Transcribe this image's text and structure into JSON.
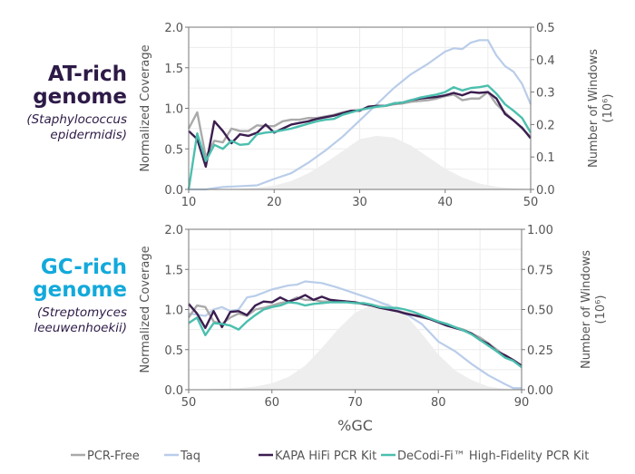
{
  "colors": {
    "at_title": "#2d1a47",
    "gc_title": "#13a9db",
    "pcr_free": "#aaaaaa",
    "taq": "#b9cde9",
    "kapa": "#3b1d4f",
    "decodi": "#4bbfae",
    "windows_fill": "#eeeeee"
  },
  "panels": [
    {
      "title_line1": "AT-rich",
      "title_line2": "genome",
      "organism_line1": "(Staphylococcus",
      "organism_line2": "epidermidis)"
    },
    {
      "title_line1": "GC-rich",
      "title_line2": "genome",
      "organism_line1": "(Streptomyces",
      "organism_line2": "leeuwenhoekii)"
    }
  ],
  "legend": [
    "PCR-Free",
    "Taq",
    "KAPA HiFi PCR Kit",
    "DeCodi-Fi™ High-Fidelity PCR Kit"
  ],
  "chart_data": [
    {
      "type": "line",
      "xlabel": "%GC",
      "ylabel": "Normalized Coverage",
      "y2label_line1": "Number of Windows",
      "y2label_line2": "(10⁶)",
      "xlim": [
        10,
        50
      ],
      "ylim": [
        0,
        2
      ],
      "y2lim": [
        0,
        0.5
      ],
      "grid": true,
      "xticks": [
        "10",
        "20",
        "30",
        "40",
        "50"
      ],
      "yticks": [
        "0.0",
        "0.5",
        "1.0",
        "1.5",
        "2.0"
      ],
      "y2ticks": [
        "0.0",
        "0.1",
        "0.2",
        "0.3",
        "0.4",
        "0.5"
      ],
      "x": [
        10,
        11,
        12,
        13,
        14,
        15,
        16,
        17,
        18,
        19,
        20,
        21,
        22,
        23,
        24,
        25,
        26,
        27,
        28,
        29,
        30,
        31,
        32,
        33,
        34,
        35,
        36,
        37,
        38,
        39,
        40,
        41,
        42,
        43,
        44,
        45,
        46,
        47,
        48,
        49,
        50
      ],
      "series": [
        {
          "name": "PCR-Free",
          "values": [
            0.75,
            0.95,
            0.4,
            0.6,
            0.58,
            0.75,
            0.72,
            0.72,
            0.79,
            0.78,
            0.78,
            0.84,
            0.86,
            0.86,
            0.88,
            0.88,
            0.9,
            0.92,
            0.95,
            0.97,
            0.98,
            1.0,
            1.02,
            1.03,
            1.05,
            1.06,
            1.08,
            1.09,
            1.1,
            1.12,
            1.15,
            1.17,
            1.1,
            1.12,
            1.12,
            1.2,
            1.05,
            0.95,
            0.85,
            0.75,
            0.65
          ]
        },
        {
          "name": "KAPA HiFi PCR Kit",
          "values": [
            0.72,
            0.62,
            0.28,
            0.84,
            0.72,
            0.57,
            0.68,
            0.66,
            0.7,
            0.8,
            0.7,
            0.75,
            0.8,
            0.82,
            0.84,
            0.87,
            0.89,
            0.91,
            0.94,
            0.97,
            0.97,
            1.02,
            1.03,
            1.03,
            1.06,
            1.07,
            1.1,
            1.12,
            1.13,
            1.14,
            1.16,
            1.19,
            1.16,
            1.2,
            1.19,
            1.2,
            1.12,
            0.93,
            0.85,
            0.76,
            0.63
          ]
        },
        {
          "name": "DeCodi-Fi™ High-Fidelity PCR Kit",
          "values": [
            0.0,
            0.69,
            0.35,
            0.55,
            0.5,
            0.6,
            0.55,
            0.56,
            0.68,
            0.7,
            0.71,
            0.73,
            0.75,
            0.78,
            0.81,
            0.84,
            0.86,
            0.87,
            0.92,
            0.95,
            0.98,
            1.0,
            1.02,
            1.03,
            1.06,
            1.07,
            1.1,
            1.13,
            1.15,
            1.17,
            1.2,
            1.26,
            1.22,
            1.25,
            1.26,
            1.28,
            1.18,
            1.05,
            0.97,
            0.88,
            0.7
          ]
        }
      ],
      "taq": {
        "name": "Taq",
        "x": [
          10,
          12,
          14,
          16,
          18,
          20,
          22,
          24,
          26,
          28,
          30,
          32,
          34,
          36,
          38,
          40,
          41,
          42,
          43,
          44,
          45,
          46,
          47,
          48,
          49,
          50
        ],
        "values": [
          0,
          0,
          0.03,
          0.04,
          0.05,
          0.13,
          0.2,
          0.33,
          0.48,
          0.65,
          0.85,
          1.05,
          1.25,
          1.42,
          1.55,
          1.7,
          1.74,
          1.73,
          1.81,
          1.84,
          1.84,
          1.65,
          1.52,
          1.45,
          1.3,
          1.05
        ]
      },
      "windows": {
        "x": [
          10,
          12,
          14,
          16,
          18,
          20,
          22,
          24,
          26,
          28,
          30,
          32,
          34,
          36,
          38,
          40,
          42,
          44,
          46,
          48,
          50
        ],
        "values": [
          0,
          0.0001,
          0.0005,
          0.002,
          0.005,
          0.012,
          0.026,
          0.05,
          0.082,
          0.118,
          0.155,
          0.165,
          0.16,
          0.135,
          0.1,
          0.064,
          0.037,
          0.018,
          0.008,
          0.003,
          0.001
        ]
      }
    },
    {
      "type": "line",
      "xlabel": "%GC",
      "ylabel": "Normalized Coverage",
      "y2label_line1": "Number of Windows",
      "y2label_line2": "(10⁶)",
      "xlim": [
        50,
        90
      ],
      "ylim": [
        0,
        2
      ],
      "y2lim": [
        0,
        1
      ],
      "grid": true,
      "xticks": [
        "50",
        "60",
        "70",
        "80",
        "90"
      ],
      "yticks": [
        "0.0",
        "0.5",
        "1.0",
        "1.5",
        "2.0"
      ],
      "y2ticks": [
        "0.00",
        "0.25",
        "0.50",
        "0.75",
        "1.00"
      ],
      "x": [
        50,
        51,
        52,
        53,
        54,
        55,
        56,
        57,
        58,
        59,
        60,
        61,
        62,
        63,
        64,
        65,
        66,
        67,
        68,
        69,
        70,
        71,
        72,
        73,
        74,
        75,
        76,
        77,
        78,
        79,
        80,
        81,
        82,
        83,
        84,
        85,
        86,
        87,
        88,
        89,
        90
      ],
      "series": [
        {
          "name": "PCR-Free",
          "values": [
            0.9,
            1.05,
            1.03,
            0.85,
            0.82,
            0.9,
            0.95,
            0.92,
            1.0,
            1.02,
            1.05,
            1.08,
            1.1,
            1.15,
            1.12,
            1.12,
            1.1,
            1.1,
            1.1,
            1.1,
            1.08,
            1.07,
            1.05,
            1.03,
            1.0,
            0.98,
            0.96,
            0.93,
            0.9,
            0.88,
            0.85,
            0.82,
            0.78,
            0.75,
            0.7,
            0.65,
            0.58,
            0.5,
            0.42,
            0.36,
            0.3
          ]
        },
        {
          "name": "KAPA HiFi PCR Kit",
          "values": [
            1.07,
            0.95,
            0.77,
            0.98,
            0.78,
            0.97,
            0.98,
            0.93,
            1.05,
            1.1,
            1.09,
            1.15,
            1.1,
            1.13,
            1.18,
            1.12,
            1.16,
            1.12,
            1.11,
            1.1,
            1.09,
            1.07,
            1.05,
            1.02,
            1.0,
            0.98,
            0.95,
            0.93,
            0.91,
            0.88,
            0.84,
            0.8,
            0.77,
            0.74,
            0.7,
            0.62,
            0.57,
            0.48,
            0.43,
            0.37,
            0.3
          ]
        },
        {
          "name": "DeCodi-Fi™ High-Fidelity PCR Kit",
          "values": [
            0.83,
            0.9,
            0.68,
            0.83,
            0.82,
            0.8,
            0.75,
            0.85,
            0.93,
            1.0,
            1.03,
            1.05,
            1.09,
            1.08,
            1.05,
            1.07,
            1.08,
            1.09,
            1.09,
            1.09,
            1.08,
            1.08,
            1.06,
            1.03,
            1.02,
            1.02,
            1.0,
            0.97,
            0.93,
            0.89,
            0.85,
            0.82,
            0.78,
            0.74,
            0.69,
            0.62,
            0.55,
            0.48,
            0.4,
            0.36,
            0.28
          ]
        }
      ],
      "taq": {
        "name": "Taq",
        "x": [
          50,
          52,
          53,
          54,
          55,
          56,
          57,
          58,
          60,
          62,
          63,
          64,
          66,
          68,
          70,
          72,
          74,
          76,
          78,
          80,
          82,
          84,
          86,
          88,
          89,
          90
        ],
        "values": [
          0.95,
          0.92,
          1.0,
          1.03,
          0.98,
          1.0,
          1.15,
          1.17,
          1.25,
          1.3,
          1.31,
          1.35,
          1.33,
          1.27,
          1.2,
          1.13,
          1.05,
          0.95,
          0.82,
          0.6,
          0.48,
          0.32,
          0.18,
          0.07,
          0.02,
          0.02
        ]
      },
      "windows": {
        "x": [
          50,
          54,
          56,
          58,
          60,
          62,
          64,
          66,
          68,
          70,
          72,
          74,
          76,
          78,
          80,
          82,
          84,
          86,
          88,
          90
        ],
        "values": [
          0,
          0.005,
          0.01,
          0.02,
          0.04,
          0.08,
          0.15,
          0.26,
          0.38,
          0.48,
          0.53,
          0.54,
          0.47,
          0.35,
          0.22,
          0.12,
          0.06,
          0.02,
          0.005,
          0
        ]
      }
    }
  ]
}
